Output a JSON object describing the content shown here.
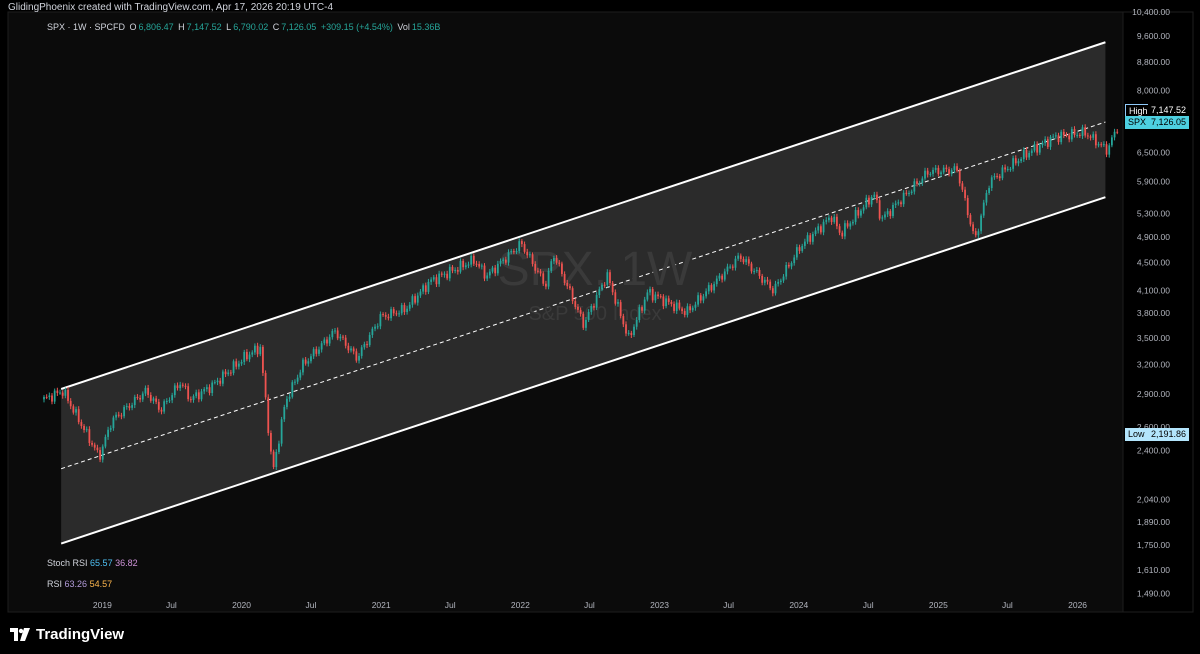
{
  "header": {
    "credit": "GlidingPhoenix created with TradingView.com, Apr 17, 2026 20:19 UTC-4",
    "symbol_line": "SPX · 1W · SPCFD",
    "o_label": "O",
    "o_value": "6,806.47",
    "h_label": "H",
    "h_value": "7,147.52",
    "l_label": "L",
    "l_value": "6,790.02",
    "c_label": "C",
    "c_value": "7,126.05",
    "change": "+309.15 (+4.54%)",
    "vol_label": "Vol",
    "vol_value": "15.36B"
  },
  "watermark": {
    "symbol": "SPX, 1W",
    "name": "S&P 500 Index"
  },
  "indicators": {
    "stoch_label": "Stoch RSI",
    "stoch_k": "65.57",
    "stoch_d": "36.82",
    "rsi_label": "RSI",
    "rsi_value": "63.26",
    "rsi_ma": "54.57"
  },
  "badges": {
    "high_label": "High",
    "high_value": "7,147.52",
    "spx_label": "SPX",
    "spx_value": "7,126.05",
    "low_label": "Low",
    "low_value": "2,191.86"
  },
  "brand": {
    "name": "TradingView"
  },
  "colors": {
    "up": "#26a69a",
    "down": "#ef5350",
    "channel": "#ffffff",
    "badge": "#b3e5fc"
  },
  "chart_data": {
    "type": "candlestick",
    "title": "SPX · 1W · SPCFD",
    "y_scale": "log",
    "ylim": [
      1400,
      10400
    ],
    "y_ticks": [
      "10,400.00",
      "9,600.00",
      "8,800.00",
      "8,000.00",
      "7,250.00",
      "6,500.00",
      "5,900.00",
      "5,300.00",
      "4,900.00",
      "4,500.00",
      "4,100.00",
      "3,800.00",
      "3,500.00",
      "3,200.00",
      "2,900.00",
      "2,600.00",
      "2,400.00",
      "2,191.86",
      "2,040.00",
      "1,890.00",
      "1,750.00",
      "1,610.00",
      "1,490.00"
    ],
    "x_ticks": [
      "2019",
      "Jul",
      "2020",
      "Jul",
      "2021",
      "Jul",
      "2022",
      "Jul",
      "2023",
      "Jul",
      "2024",
      "Jul",
      "2025",
      "Jul",
      "2026"
    ],
    "channel": {
      "upper": [
        {
          "date": "2018-09-15",
          "value": 2950
        },
        {
          "date": "2026-03-15",
          "value": 9400
        }
      ],
      "middle": [
        {
          "date": "2018-09-15",
          "value": 2260
        },
        {
          "date": "2026-03-15",
          "value": 7200
        }
      ],
      "lower": [
        {
          "date": "2018-09-15",
          "value": 1760
        },
        {
          "date": "2026-03-15",
          "value": 5600
        }
      ]
    },
    "price_path": [
      {
        "date": "2018-08-01",
        "value": 2850
      },
      {
        "date": "2018-09-20",
        "value": 2930
      },
      {
        "date": "2018-10-25",
        "value": 2700
      },
      {
        "date": "2018-12-24",
        "value": 2350
      },
      {
        "date": "2019-01-25",
        "value": 2650
      },
      {
        "date": "2019-04-25",
        "value": 2930
      },
      {
        "date": "2019-06-03",
        "value": 2750
      },
      {
        "date": "2019-07-25",
        "value": 3020
      },
      {
        "date": "2019-08-20",
        "value": 2850
      },
      {
        "date": "2019-10-15",
        "value": 2980
      },
      {
        "date": "2020-01-15",
        "value": 3300
      },
      {
        "date": "2020-02-19",
        "value": 3390
      },
      {
        "date": "2020-03-23",
        "value": 2230
      },
      {
        "date": "2020-04-25",
        "value": 2830
      },
      {
        "date": "2020-06-10",
        "value": 3200
      },
      {
        "date": "2020-09-02",
        "value": 3580
      },
      {
        "date": "2020-10-30",
        "value": 3270
      },
      {
        "date": "2020-12-30",
        "value": 3750
      },
      {
        "date": "2021-03-05",
        "value": 3850
      },
      {
        "date": "2021-05-10",
        "value": 4230
      },
      {
        "date": "2021-09-02",
        "value": 4540
      },
      {
        "date": "2021-10-04",
        "value": 4300
      },
      {
        "date": "2022-01-03",
        "value": 4800
      },
      {
        "date": "2022-03-08",
        "value": 4170
      },
      {
        "date": "2022-03-29",
        "value": 4630
      },
      {
        "date": "2022-06-16",
        "value": 3660
      },
      {
        "date": "2022-08-16",
        "value": 4320
      },
      {
        "date": "2022-10-12",
        "value": 3490
      },
      {
        "date": "2022-12-01",
        "value": 4080
      },
      {
        "date": "2023-03-13",
        "value": 3810
      },
      {
        "date": "2023-07-31",
        "value": 4600
      },
      {
        "date": "2023-10-27",
        "value": 4100
      },
      {
        "date": "2024-01-05",
        "value": 4750
      },
      {
        "date": "2024-03-28",
        "value": 5260
      },
      {
        "date": "2024-04-19",
        "value": 4950
      },
      {
        "date": "2024-07-16",
        "value": 5660
      },
      {
        "date": "2024-08-05",
        "value": 5200
      },
      {
        "date": "2024-12-06",
        "value": 6100
      },
      {
        "date": "2025-02-19",
        "value": 6140
      },
      {
        "date": "2025-04-07",
        "value": 4840
      },
      {
        "date": "2025-05-15",
        "value": 5900
      },
      {
        "date": "2025-08-15",
        "value": 6450
      },
      {
        "date": "2025-11-01",
        "value": 6850
      },
      {
        "date": "2026-01-20",
        "value": 6950
      },
      {
        "date": "2026-03-20",
        "value": 6550
      },
      {
        "date": "2026-04-17",
        "value": 7126.05
      }
    ],
    "last_close": 7126.05,
    "period_high": 7147.52,
    "period_low": 2191.86
  }
}
